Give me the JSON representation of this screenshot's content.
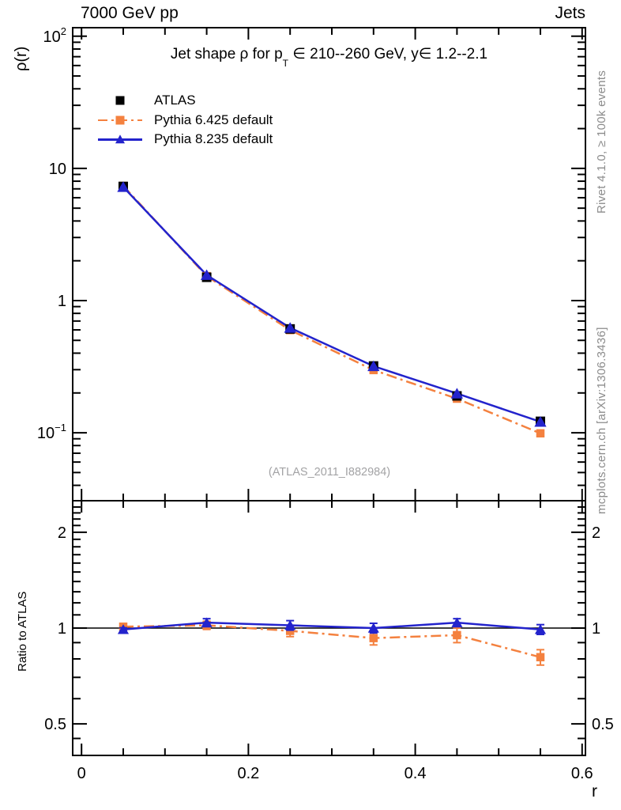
{
  "header": {
    "beam_label": "7000 GeV pp",
    "process_label": "Jets"
  },
  "main_plot": {
    "title_parts": [
      {
        "text": "Jet shape ρ for p"
      },
      {
        "text": "T",
        "sub": true
      },
      {
        "text": " ∈ 210--260 GeV, y∈ 1.2--2.1"
      }
    ],
    "ylabel": "ρ(r)",
    "xlabel": "r",
    "yticks": [
      {
        "v": 100,
        "base": "10",
        "exp": "2"
      },
      {
        "v": 10,
        "base": "10",
        "exp": ""
      },
      {
        "v": 1,
        "base": "1",
        "exp": ""
      },
      {
        "v": 0.1,
        "base": "10",
        "exp": "−1"
      }
    ]
  },
  "ratio_plot": {
    "ylabel": "Ratio to ATLAS",
    "yticks": [
      {
        "v": 2,
        "label": "2"
      },
      {
        "v": 1,
        "label": "1"
      },
      {
        "v": 0.5,
        "label": "0.5"
      }
    ],
    "xticks": [
      {
        "v": 0,
        "label": "0"
      },
      {
        "v": 0.2,
        "label": "0.2"
      },
      {
        "v": 0.4,
        "label": "0.4"
      },
      {
        "v": 0.6,
        "label": "0.6"
      }
    ]
  },
  "legend": {
    "entries": [
      {
        "label": "ATLAS",
        "marker": "square",
        "line": "none",
        "color": "#000000"
      },
      {
        "label": "Pythia 6.425 default",
        "marker": "square",
        "line": "dashdot",
        "color": "#f4813f"
      },
      {
        "label": "Pythia 8.235 default",
        "marker": "triangle",
        "line": "solid",
        "color": "#2323cc"
      }
    ]
  },
  "watermark": "(ATLAS_2011_I882984)",
  "side_notes": {
    "generator": "Rivet 4.1.0, ≥ 100k events",
    "source": "mcplots.cern.ch [arXiv:1306.3436]"
  },
  "colors": {
    "atlas": "#000000",
    "pythia6": "#f4813f",
    "pythia8": "#2323cc",
    "frame": "#000000",
    "refline": "#000000",
    "side_note": "#8c8c8c",
    "watermark": "#a3a3a5"
  },
  "chart_data": [
    {
      "type": "line",
      "panel": "main",
      "title": "Jet shape ρ for p_T ∈ 210--260 GeV, y ∈ 1.2--2.1",
      "xlabel": "r",
      "ylabel": "ρ(r)",
      "xscale": "linear",
      "yscale": "log",
      "xlim": [
        -0.0106,
        0.604
      ],
      "ylim": [
        0.0306,
        116
      ],
      "grid": false,
      "legend_position": "upper-left",
      "x": [
        0.05,
        0.15,
        0.25,
        0.35,
        0.45,
        0.55
      ],
      "series": [
        {
          "name": "ATLAS",
          "color": "#000000",
          "marker": "square",
          "line": "none",
          "values": [
            7.3,
            1.5,
            0.61,
            0.32,
            0.19,
            0.122
          ]
        },
        {
          "name": "Pythia 6.425 default",
          "color": "#f4813f",
          "marker": "square",
          "line": "dashdot",
          "values": [
            7.37,
            1.53,
            0.598,
            0.298,
            0.181,
            0.099
          ]
        },
        {
          "name": "Pythia 8.235 default",
          "color": "#2323cc",
          "marker": "triangle",
          "line": "solid",
          "values": [
            7.23,
            1.56,
            0.622,
            0.319,
            0.198,
            0.121
          ]
        }
      ]
    },
    {
      "type": "line",
      "panel": "ratio",
      "title": "",
      "xlabel": "r",
      "ylabel": "Ratio to ATLAS",
      "xscale": "linear",
      "yscale": "log",
      "xlim": [
        -0.0106,
        0.604
      ],
      "ylim": [
        0.398,
        2.512
      ],
      "refline": 1,
      "x": [
        0.05,
        0.15,
        0.25,
        0.35,
        0.45,
        0.55
      ],
      "series": [
        {
          "name": "Pythia 6.425 default",
          "color": "#f4813f",
          "marker": "square",
          "line": "dashdot",
          "values": [
            1.01,
            1.02,
            0.98,
            0.93,
            0.95,
            0.81
          ],
          "errors": [
            0.015,
            0.03,
            0.04,
            0.045,
            0.05,
            0.045
          ]
        },
        {
          "name": "Pythia 8.235 default",
          "color": "#2323cc",
          "marker": "triangle",
          "line": "solid",
          "values": [
            0.99,
            1.04,
            1.02,
            1.0,
            1.04,
            0.99
          ],
          "errors": [
            0.012,
            0.03,
            0.035,
            0.035,
            0.03,
            0.035
          ]
        }
      ]
    }
  ]
}
